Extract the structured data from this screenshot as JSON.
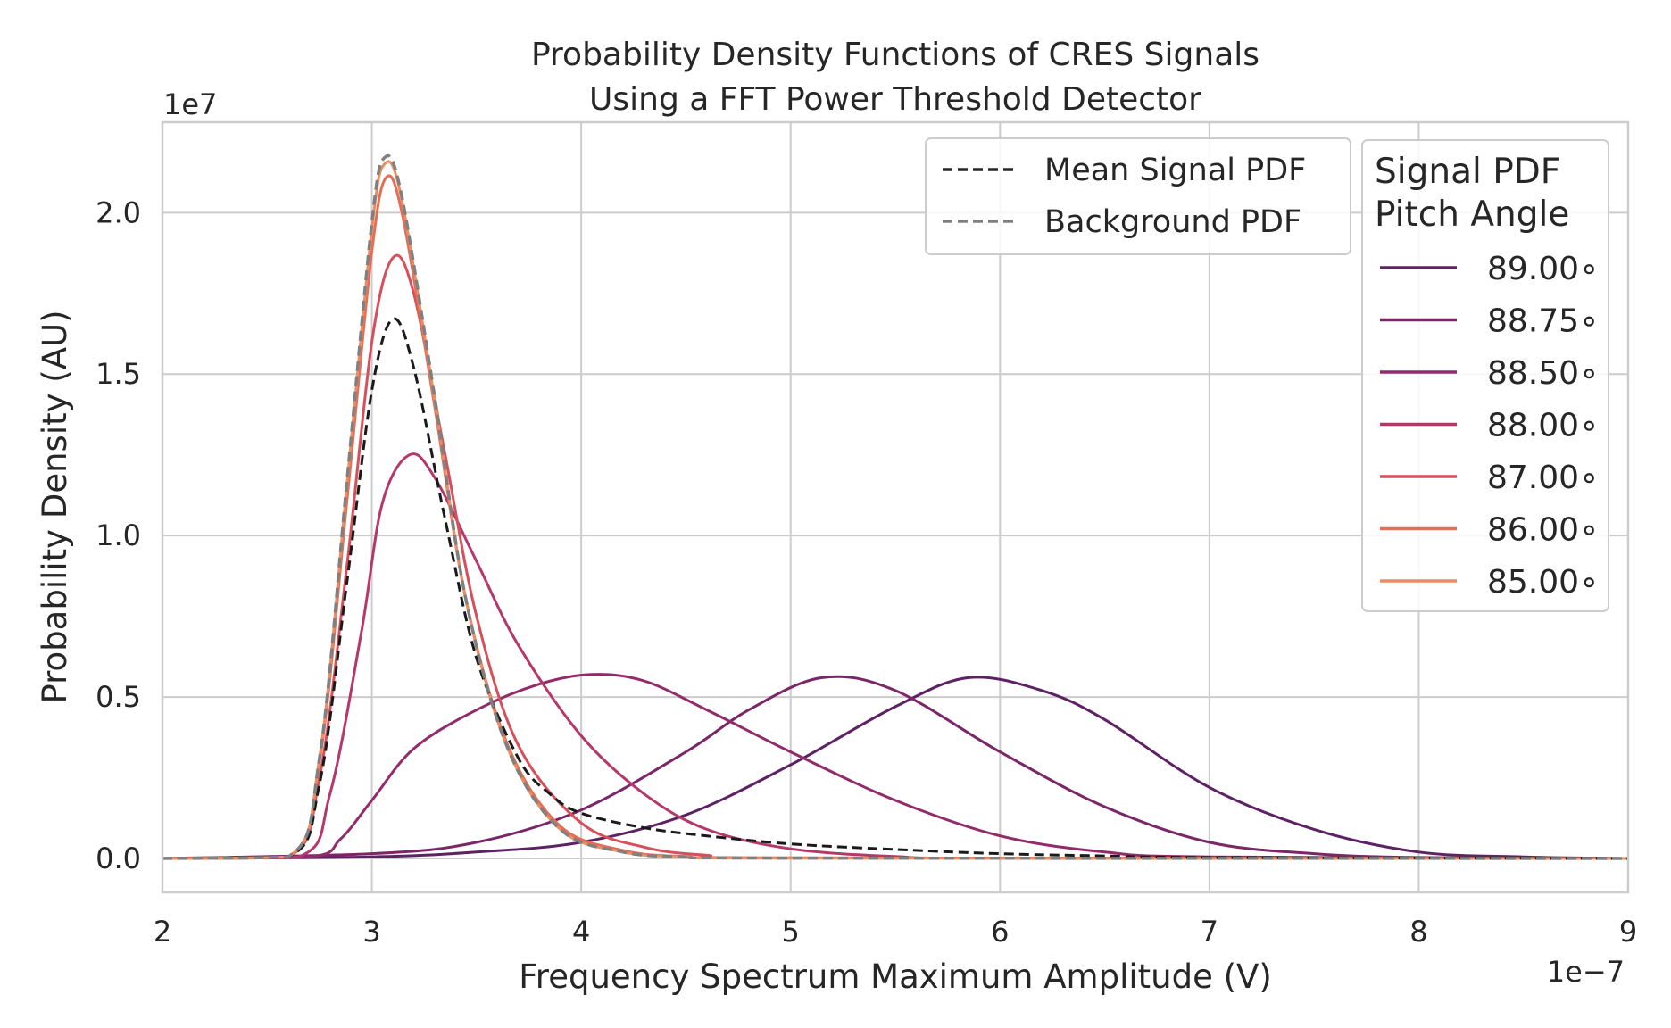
{
  "chart_data": {
    "type": "line",
    "title": [
      "Probability Density Functions of CRES Signals",
      "Using a FFT Power Threshold Detector"
    ],
    "xlabel": "Frequency Spectrum Maximum Amplitude (V)",
    "ylabel": "Probability Density (AU)",
    "x_offset_label": "1e−7",
    "y_offset_label": "1e7",
    "xlim": [
      2,
      9
    ],
    "ylim": [
      -1.05,
      22.8
    ],
    "x_ticks": [
      2,
      3,
      4,
      5,
      6,
      7,
      8,
      9
    ],
    "x_tick_labels": [
      "2",
      "3",
      "4",
      "5",
      "6",
      "7",
      "8",
      "9"
    ],
    "y_ticks": [
      0,
      5,
      10,
      15,
      20
    ],
    "y_tick_labels": [
      "0.0",
      "0.5",
      "1.0",
      "1.5",
      "2.0"
    ],
    "grid": true,
    "legend_placement": "top-right",
    "legend_1": {
      "entries": [
        {
          "label": "Mean Signal PDF",
          "color": "#262626",
          "dash": "dashed"
        },
        {
          "label": "Background PDF",
          "color": "#808080",
          "dash": "dashed"
        }
      ]
    },
    "legend_2": {
      "title": [
        "Signal PDF",
        "Pitch Angle"
      ],
      "entries": [
        {
          "label": "89.00∘",
          "color": "#5d2263"
        },
        {
          "label": "88.75∘",
          "color": "#7a2768"
        },
        {
          "label": "88.50∘",
          "color": "#922b6a"
        },
        {
          "label": "88.00∘",
          "color": "#b5386a"
        },
        {
          "label": "87.00∘",
          "color": "#d64f5a"
        },
        {
          "label": "86.00∘",
          "color": "#e66c55"
        },
        {
          "label": "85.00∘",
          "color": "#ec8c62"
        }
      ]
    },
    "series": [
      {
        "name": "89.00∘",
        "color": "#5d2263",
        "dash": "solid",
        "x": [
          2,
          3,
          3.5,
          4,
          4.5,
          5,
          5.5,
          5.85,
          6.2,
          6.5,
          7,
          7.5,
          8,
          8.5,
          9
        ],
        "y": [
          0,
          0.05,
          0.2,
          0.5,
          1.35,
          2.9,
          4.7,
          5.6,
          5.2,
          4.3,
          2.2,
          0.9,
          0.2,
          0.05,
          0
        ]
      },
      {
        "name": "88.75∘",
        "color": "#7a2768",
        "dash": "solid",
        "x": [
          2,
          3,
          3.5,
          4,
          4.5,
          4.8,
          5.15,
          5.5,
          6,
          6.5,
          7,
          7.5,
          8,
          9
        ],
        "y": [
          0,
          0.15,
          0.5,
          1.5,
          3.3,
          4.6,
          5.6,
          5.2,
          3.3,
          1.6,
          0.5,
          0.15,
          0.03,
          0
        ]
      },
      {
        "name": "88.50∘",
        "color": "#922b6a",
        "dash": "solid",
        "x": [
          2,
          2.7,
          2.85,
          3,
          3.2,
          3.5,
          3.8,
          4.05,
          4.3,
          4.6,
          5,
          5.5,
          6,
          6.5,
          7,
          9
        ],
        "y": [
          0,
          0.05,
          0.6,
          1.8,
          3.4,
          4.6,
          5.4,
          5.7,
          5.5,
          4.6,
          3.3,
          1.8,
          0.7,
          0.2,
          0.05,
          0
        ]
      },
      {
        "name": "88.00∘",
        "color": "#b5386a",
        "dash": "solid",
        "x": [
          2,
          2.65,
          2.8,
          2.95,
          3.05,
          3.18,
          3.3,
          3.5,
          3.7,
          4,
          4.3,
          4.6,
          5,
          5.5,
          6,
          9
        ],
        "y": [
          0,
          0.05,
          2,
          7,
          11,
          12.5,
          11.8,
          9.2,
          6.6,
          3.8,
          2,
          0.9,
          0.3,
          0.06,
          0.01,
          0
        ]
      },
      {
        "name": "87.00∘",
        "color": "#d64f5a",
        "dash": "solid",
        "x": [
          2,
          2.6,
          2.75,
          2.88,
          3,
          3.1,
          3.2,
          3.35,
          3.5,
          3.7,
          4,
          4.3,
          4.6,
          5,
          9
        ],
        "y": [
          0,
          0.05,
          2.5,
          9,
          16,
          18.6,
          17.5,
          12.5,
          7.5,
          3.5,
          1.1,
          0.35,
          0.1,
          0.02,
          0
        ]
      },
      {
        "name": "86.00∘",
        "color": "#e66c55",
        "dash": "solid",
        "x": [
          2,
          2.6,
          2.75,
          2.88,
          3,
          3.07,
          3.15,
          3.3,
          3.45,
          3.65,
          3.9,
          4.2,
          4.5,
          5,
          9
        ],
        "y": [
          0,
          0.05,
          3,
          11,
          18.8,
          21.1,
          19.8,
          14,
          8,
          3.5,
          1,
          0.25,
          0.06,
          0.01,
          0
        ]
      },
      {
        "name": "85.00∘",
        "color": "#ec8c62",
        "dash": "solid",
        "x": [
          2,
          2.6,
          2.75,
          2.88,
          3,
          3.06,
          3.14,
          3.3,
          3.45,
          3.65,
          3.9,
          4.2,
          4.5,
          5,
          9
        ],
        "y": [
          0,
          0.05,
          3.1,
          11.5,
          19.5,
          21.5,
          20.5,
          14.2,
          8,
          3.4,
          0.9,
          0.2,
          0.05,
          0.01,
          0
        ]
      },
      {
        "name": "Mean Signal PDF",
        "color": "#1a1a1a",
        "dash": "dashed",
        "x": [
          2,
          2.6,
          2.75,
          2.88,
          3,
          3.1,
          3.2,
          3.35,
          3.5,
          3.7,
          3.85,
          4,
          4.3,
          4.6,
          5,
          5.5,
          6,
          6.5,
          7,
          9
        ],
        "y": [
          0,
          0.05,
          2.3,
          8.5,
          14.5,
          16.7,
          15.2,
          10.5,
          6.2,
          3.1,
          2,
          1.4,
          0.95,
          0.7,
          0.45,
          0.28,
          0.15,
          0.08,
          0.03,
          0
        ]
      },
      {
        "name": "Background PDF",
        "color": "#808080",
        "dash": "dashed",
        "x": [
          2,
          2.6,
          2.75,
          2.88,
          3,
          3.06,
          3.14,
          3.3,
          3.45,
          3.65,
          3.9,
          4.2,
          4.5,
          5,
          9
        ],
        "y": [
          0,
          0.05,
          3.1,
          11.6,
          19.7,
          21.7,
          20.6,
          14.3,
          8,
          3.4,
          0.9,
          0.2,
          0.05,
          0.01,
          0
        ]
      }
    ]
  }
}
